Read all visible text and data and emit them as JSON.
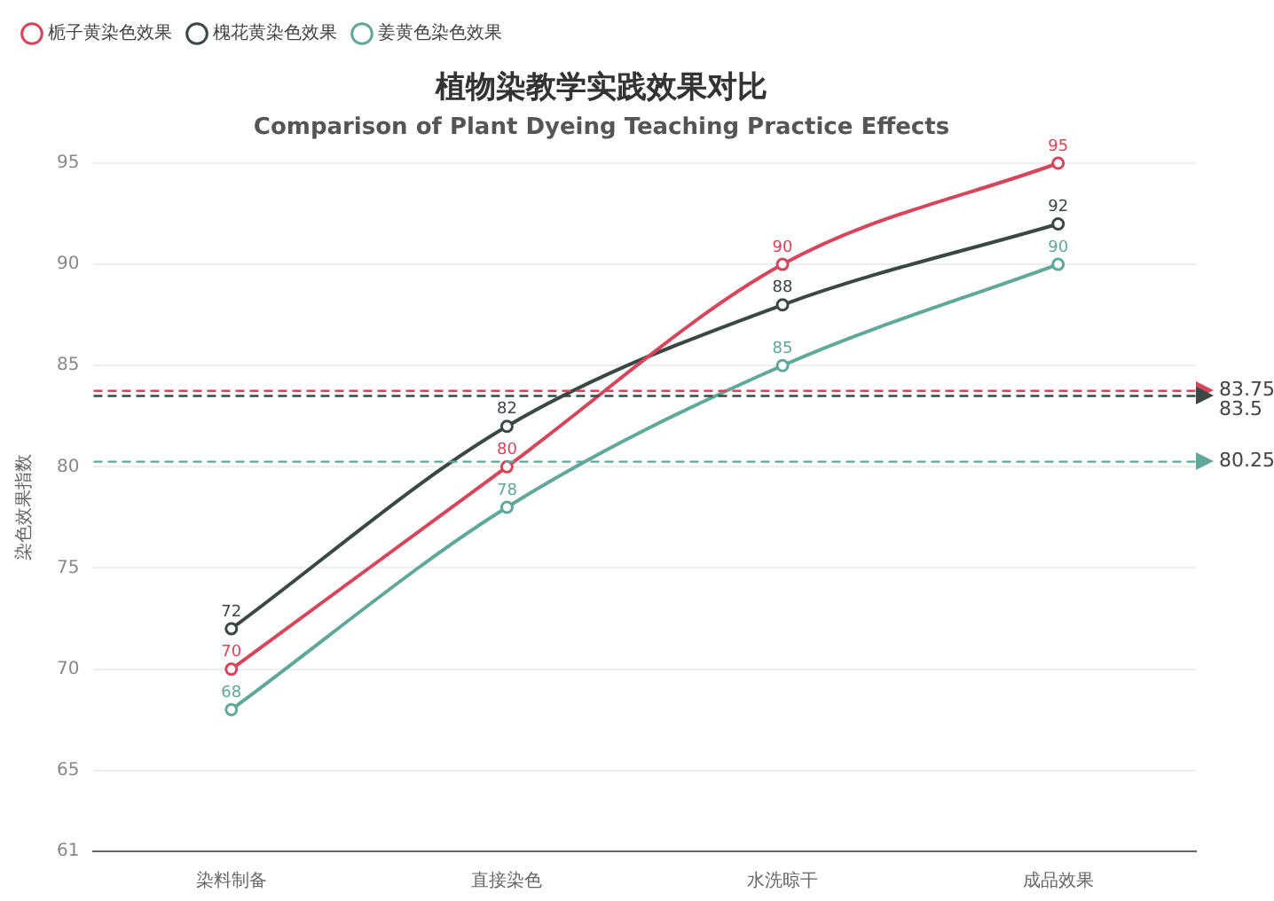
{
  "chart_data": {
    "type": "line",
    "title": "植物染教学实践效果对比",
    "subtitle": "Comparison of Plant Dyeing Teaching Practice Effects",
    "ylabel": "染色效果指数",
    "categories": [
      "染料制备",
      "直接染色",
      "水洗晾干",
      "成品效果"
    ],
    "series": [
      {
        "name": "栀子黄染色效果",
        "color": "#d6455b",
        "values": [
          70,
          80,
          90,
          95
        ]
      },
      {
        "name": "槐花黄染色效果",
        "color": "#3a4744",
        "values": [
          72,
          82,
          88,
          92
        ]
      },
      {
        "name": "姜黄色染色效果",
        "color": "#5fa89a",
        "values": [
          68,
          78,
          85,
          90
        ]
      }
    ],
    "ref_lines": [
      {
        "axis": "y",
        "value": 83.75,
        "label": "83.75",
        "color": "#d6455b",
        "line_style": "dashed"
      },
      {
        "axis": "y",
        "value": 83.5,
        "label": "83.5",
        "color": "#3a4744",
        "line_style": "dashed"
      },
      {
        "axis": "y",
        "value": 80.25,
        "label": "80.25",
        "color": "#5fa89a",
        "line_style": "dashed"
      }
    ],
    "ylim": [
      61,
      95
    ],
    "yticks": [
      61,
      65,
      70,
      75,
      80,
      85,
      90,
      95
    ],
    "grid": "y",
    "legend": "top left",
    "marker": "circle",
    "line_style": "solid",
    "data_labels": true
  }
}
